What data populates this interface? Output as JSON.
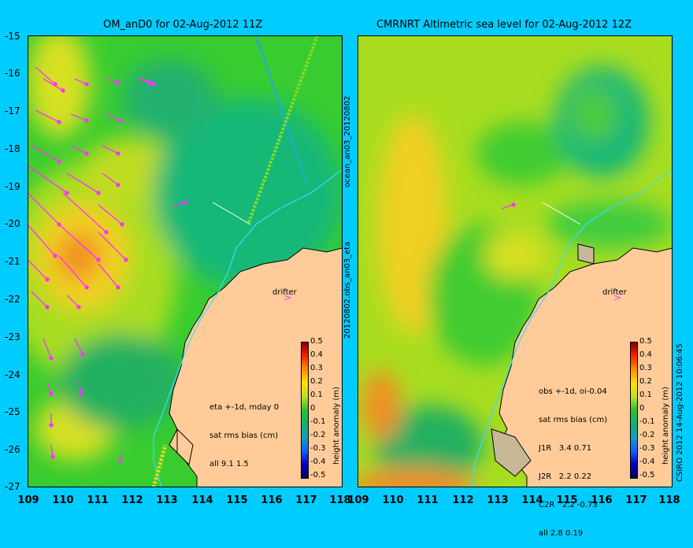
{
  "panels": [
    {
      "title": "OM_anD0 for 02-Aug-2012 11Z",
      "info": [
        "eta +-1d, mday 0",
        "sat rms bias (cm)",
        "all 9.1 1.5"
      ],
      "drifter_label": "drifter"
    },
    {
      "title": "CMRNRT Altimetric sea level  for 02-Aug-2012 12Z",
      "info": [
        "obs +-1d, oi-0.04",
        "sat rms bias (cm)",
        "J1R   3.4 0.71",
        "J2R   2.2 0.22",
        "C2R   2.2 -0.73",
        "all 2.8 0.19"
      ],
      "drifter_label": "drifter"
    }
  ],
  "y_ticks": [
    "-15",
    "-16",
    "-17",
    "-18",
    "-19",
    "-20",
    "-21",
    "-22",
    "-23",
    "-24",
    "-25",
    "-26",
    "-27"
  ],
  "x_ticks": [
    "109",
    "110",
    "111",
    "112",
    "113",
    "114",
    "115",
    "116",
    "117",
    "118"
  ],
  "colorbar": {
    "label": "height anomaly (m)",
    "ticks": [
      "0.5",
      "0.4",
      "0.3",
      "0.2",
      "0.1",
      "0",
      "-0.1",
      "-0.2",
      "-0.3",
      "-0.4",
      "-0.5"
    ]
  },
  "side_text_top": "ocean_an03_20120802",
  "side_text_bottom": "20120802.obs_an03_eta",
  "credit": "CSIRO 2012  14-Aug-2012 10:06:45",
  "colors": {
    "background": "#00ccff",
    "land": "#ffcc99",
    "vector": "#ff33ff"
  }
}
